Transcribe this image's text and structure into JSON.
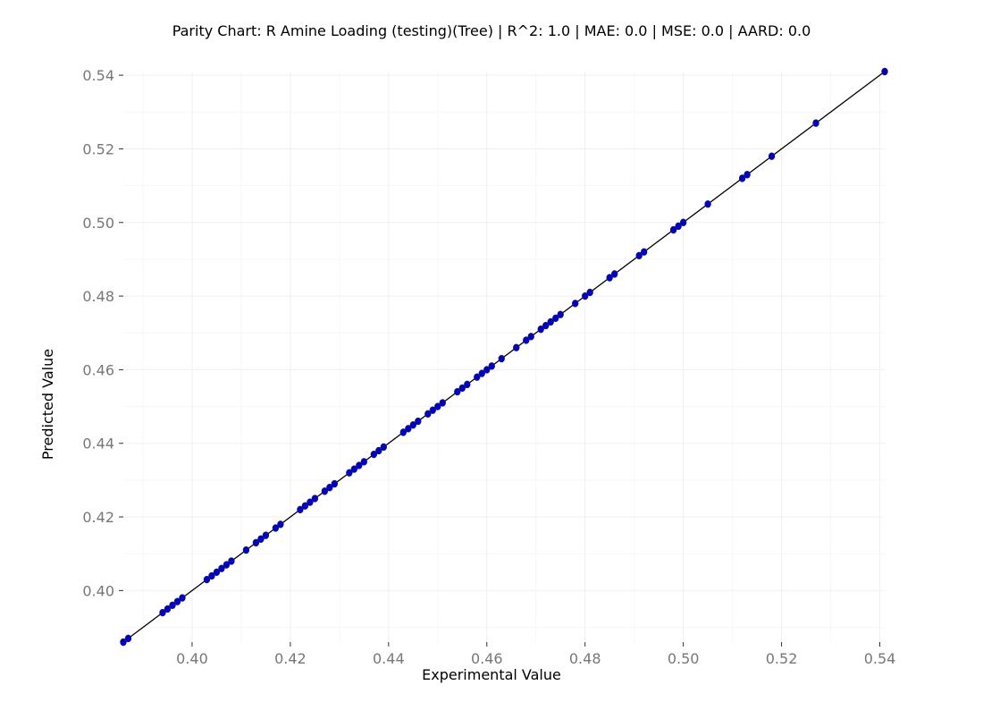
{
  "chart_data": {
    "type": "scatter",
    "title": "Parity Chart: R Amine Loading (testing)(Tree) | R^2: 1.0 | MAE: 0.0 | MSE: 0.0 | AARD: 0.0",
    "xlabel": "Experimental Value",
    "ylabel": "Predicted Value",
    "xlim": [
      0.386,
      0.541
    ],
    "ylim": [
      0.386,
      0.541
    ],
    "x_ticks": [
      "0.40",
      "0.42",
      "0.44",
      "0.46",
      "0.48",
      "0.50",
      "0.52",
      "0.54"
    ],
    "y_ticks": [
      "0.40",
      "0.42",
      "0.44",
      "0.46",
      "0.48",
      "0.50",
      "0.52",
      "0.54"
    ],
    "grid": true,
    "legend": "none",
    "colors": {
      "points": "#0000cc",
      "line": "#000000"
    },
    "parity_line": [
      [
        0.386,
        0.386
      ],
      [
        0.541,
        0.541
      ]
    ],
    "series": [
      {
        "x": [
          0.386,
          0.387,
          0.394,
          0.395,
          0.396,
          0.397,
          0.398,
          0.403,
          0.404,
          0.405,
          0.406,
          0.407,
          0.408,
          0.411,
          0.413,
          0.414,
          0.415,
          0.417,
          0.418,
          0.422,
          0.423,
          0.424,
          0.425,
          0.427,
          0.428,
          0.429,
          0.432,
          0.433,
          0.434,
          0.435,
          0.437,
          0.438,
          0.439,
          0.443,
          0.444,
          0.445,
          0.446,
          0.448,
          0.449,
          0.45,
          0.451,
          0.454,
          0.455,
          0.456,
          0.458,
          0.459,
          0.46,
          0.461,
          0.463,
          0.466,
          0.468,
          0.469,
          0.471,
          0.472,
          0.473,
          0.474,
          0.475,
          0.478,
          0.48,
          0.481,
          0.485,
          0.486,
          0.491,
          0.492,
          0.498,
          0.499,
          0.5,
          0.505,
          0.512,
          0.513,
          0.518,
          0.527,
          0.541
        ],
        "y": [
          0.386,
          0.387,
          0.394,
          0.395,
          0.396,
          0.397,
          0.398,
          0.403,
          0.404,
          0.405,
          0.406,
          0.407,
          0.408,
          0.411,
          0.413,
          0.414,
          0.415,
          0.417,
          0.418,
          0.422,
          0.423,
          0.424,
          0.425,
          0.427,
          0.428,
          0.429,
          0.432,
          0.433,
          0.434,
          0.435,
          0.437,
          0.438,
          0.439,
          0.443,
          0.444,
          0.445,
          0.446,
          0.448,
          0.449,
          0.45,
          0.451,
          0.454,
          0.455,
          0.456,
          0.458,
          0.459,
          0.46,
          0.461,
          0.463,
          0.466,
          0.468,
          0.469,
          0.471,
          0.472,
          0.473,
          0.474,
          0.475,
          0.478,
          0.48,
          0.481,
          0.485,
          0.486,
          0.491,
          0.492,
          0.498,
          0.499,
          0.5,
          0.505,
          0.512,
          0.513,
          0.518,
          0.527,
          0.541
        ]
      }
    ]
  }
}
